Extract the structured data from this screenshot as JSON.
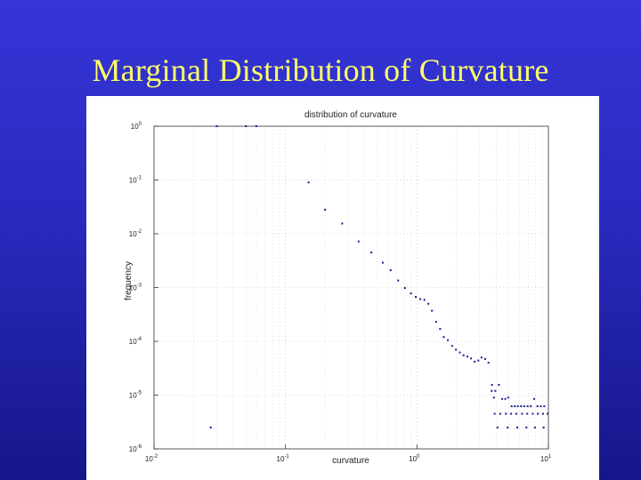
{
  "slide": {
    "title": "Marginal Distribution of Curvature"
  },
  "chart_data": {
    "type": "scatter",
    "title": "distribution of curvature",
    "xlabel": "curvature",
    "ylabel": "frequency",
    "xscale": "log",
    "yscale": "log",
    "xlim": [
      0.01,
      10
    ],
    "ylim": [
      1e-06,
      1
    ],
    "x_ticks": [
      {
        "value": 0.01,
        "base": "10",
        "exp": "-2"
      },
      {
        "value": 0.1,
        "base": "10",
        "exp": "-1"
      },
      {
        "value": 1,
        "base": "10",
        "exp": "0"
      },
      {
        "value": 10,
        "base": "10",
        "exp": "1"
      }
    ],
    "y_ticks": [
      {
        "value": 1,
        "base": "10",
        "exp": "0"
      },
      {
        "value": 0.1,
        "base": "10",
        "exp": "-1"
      },
      {
        "value": 0.01,
        "base": "10",
        "exp": "-2"
      },
      {
        "value": 0.001,
        "base": "10",
        "exp": "-3"
      },
      {
        "value": 0.0001,
        "base": "10",
        "exp": "-4"
      },
      {
        "value": 1e-05,
        "base": "10",
        "exp": "-5"
      },
      {
        "value": 1e-06,
        "base": "10",
        "exp": "-6"
      }
    ],
    "grid": "dotted",
    "marker_color": "#1a1a8c",
    "series": [
      {
        "points": [
          [
            0.15,
            0.09
          ],
          [
            0.2,
            0.028
          ],
          [
            0.27,
            0.0155
          ],
          [
            0.36,
            0.0072
          ],
          [
            0.45,
            0.0045
          ],
          [
            0.55,
            0.0029
          ],
          [
            0.63,
            0.0021
          ],
          [
            0.72,
            0.00135
          ],
          [
            0.81,
            0.00098
          ],
          [
            0.9,
            0.00078
          ],
          [
            0.98,
            0.00067
          ],
          [
            1.06,
            0.00061
          ],
          [
            1.14,
            0.00059
          ],
          [
            1.22,
            0.0005
          ],
          [
            1.3,
            0.00037
          ],
          [
            1.4,
            0.00023
          ],
          [
            1.5,
            0.00017
          ],
          [
            1.6,
            0.00012
          ],
          [
            1.72,
            0.000105
          ],
          [
            1.85,
            8.2e-05
          ],
          [
            1.98,
            7e-05
          ],
          [
            2.12,
            6.2e-05
          ],
          [
            2.26,
            5.5e-05
          ],
          [
            2.42,
            5.2e-05
          ],
          [
            2.58,
            4.8e-05
          ],
          [
            2.75,
            4.2e-05
          ],
          [
            2.93,
            4.4e-05
          ],
          [
            3.1,
            5e-05
          ],
          [
            3.3,
            4.7e-05
          ],
          [
            3.5,
            4e-05
          ],
          [
            3.72,
            1.55e-05
          ],
          [
            3.95,
            1.2e-05
          ],
          [
            4.2,
            1.55e-05
          ],
          [
            4.45,
            8.5e-06
          ],
          [
            4.7,
            8.5e-06
          ],
          [
            4.95,
            9e-06
          ],
          [
            5.25,
            6.2e-06
          ],
          [
            5.55,
            6.2e-06
          ],
          [
            5.85,
            6.2e-06
          ],
          [
            6.2,
            6.2e-06
          ],
          [
            6.55,
            6.2e-06
          ],
          [
            6.95,
            6.2e-06
          ],
          [
            7.35,
            6.2e-06
          ],
          [
            7.8,
            8.5e-06
          ],
          [
            8.25,
            6.2e-06
          ],
          [
            8.75,
            6.2e-06
          ],
          [
            9.3,
            6.2e-06
          ],
          [
            9.85,
            4.5e-06
          ],
          [
            3.9,
            4.5e-06
          ],
          [
            4.3,
            4.5e-06
          ],
          [
            4.75,
            4.5e-06
          ],
          [
            5.2,
            4.5e-06
          ],
          [
            5.7,
            4.5e-06
          ],
          [
            6.3,
            4.5e-06
          ],
          [
            6.9,
            4.5e-06
          ],
          [
            7.6,
            4.5e-06
          ],
          [
            8.3,
            4.5e-06
          ],
          [
            9.1,
            4.5e-06
          ],
          [
            4.1,
            2.5e-06
          ],
          [
            4.9,
            2.5e-06
          ],
          [
            5.8,
            2.5e-06
          ],
          [
            6.8,
            2.5e-06
          ],
          [
            7.9,
            2.5e-06
          ],
          [
            9.2,
            2.5e-06
          ],
          [
            3.7,
            1.2e-05
          ],
          [
            3.85,
            9e-06
          ],
          [
            0.027,
            2.5e-06
          ],
          [
            0.03,
            1
          ],
          [
            0.05,
            1
          ],
          [
            0.06,
            1
          ]
        ]
      }
    ]
  }
}
